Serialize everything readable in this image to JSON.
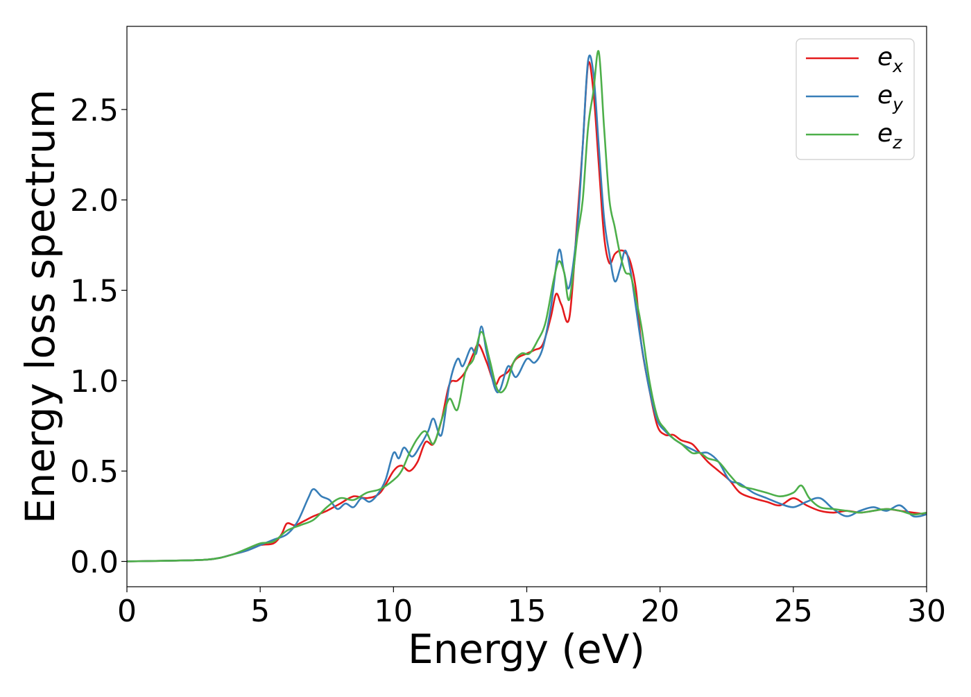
{
  "chart_data": {
    "type": "line",
    "title": "",
    "xlabel": "Energy (eV)",
    "ylabel": "Energy loss spectrum",
    "xlim": [
      0,
      30
    ],
    "ylim": [
      -0.14,
      2.96
    ],
    "xticks": [
      0,
      5,
      10,
      15,
      20,
      25,
      30
    ],
    "xtick_labels": [
      "0",
      "5",
      "10",
      "15",
      "20",
      "25",
      "30"
    ],
    "yticks": [
      0.0,
      0.5,
      1.0,
      1.5,
      2.0,
      2.5
    ],
    "ytick_labels": [
      "0.0",
      "0.5",
      "1.0",
      "1.5",
      "2.0",
      "2.5"
    ],
    "grid": false,
    "legend_position": "top-right",
    "series": [
      {
        "name": "e_x",
        "label_base": "e",
        "label_sub": "x",
        "color": "#e41a1c",
        "x": [
          0,
          2,
          3,
          3.5,
          4,
          4.5,
          5,
          5.5,
          5.8,
          6.0,
          6.3,
          6.6,
          7.0,
          7.5,
          8.0,
          8.5,
          9.0,
          9.5,
          10.0,
          10.3,
          10.6,
          10.9,
          11.2,
          11.5,
          11.8,
          12.1,
          12.4,
          12.7,
          13.0,
          13.2,
          13.5,
          13.8,
          14.0,
          14.3,
          14.6,
          15.0,
          15.3,
          15.6,
          15.9,
          16.1,
          16.3,
          16.6,
          16.9,
          17.1,
          17.3,
          17.5,
          17.7,
          17.9,
          18.1,
          18.3,
          18.5,
          18.7,
          18.9,
          19.1,
          19.3,
          19.6,
          19.9,
          20.2,
          20.5,
          20.8,
          21.2,
          21.5,
          21.8,
          22.2,
          22.6,
          23.0,
          23.5,
          24.0,
          24.5,
          25.0,
          25.5,
          26.0,
          26.5,
          27.0,
          27.5,
          28.0,
          28.5,
          29.0,
          29.5,
          30.0
        ],
        "values": [
          0.0,
          0.005,
          0.01,
          0.02,
          0.04,
          0.06,
          0.09,
          0.1,
          0.15,
          0.21,
          0.2,
          0.22,
          0.25,
          0.28,
          0.32,
          0.36,
          0.35,
          0.38,
          0.5,
          0.53,
          0.5,
          0.55,
          0.66,
          0.65,
          0.78,
          0.98,
          1.0,
          1.05,
          1.15,
          1.2,
          1.1,
          0.98,
          1.02,
          1.05,
          1.12,
          1.15,
          1.17,
          1.2,
          1.35,
          1.48,
          1.42,
          1.35,
          1.9,
          2.3,
          2.75,
          2.6,
          2.2,
          1.8,
          1.65,
          1.7,
          1.72,
          1.71,
          1.65,
          1.5,
          1.2,
          0.95,
          0.75,
          0.7,
          0.7,
          0.67,
          0.65,
          0.6,
          0.55,
          0.5,
          0.45,
          0.38,
          0.35,
          0.33,
          0.31,
          0.35,
          0.31,
          0.28,
          0.27,
          0.28,
          0.27,
          0.28,
          0.29,
          0.28,
          0.27,
          0.26
        ]
      },
      {
        "name": "e_y",
        "label_base": "e",
        "label_sub": "y",
        "color": "#377eb8",
        "x": [
          0,
          2,
          3,
          3.5,
          4,
          4.5,
          5,
          5.5,
          6.0,
          6.4,
          6.8,
          7.0,
          7.3,
          7.6,
          7.9,
          8.2,
          8.5,
          8.8,
          9.1,
          9.4,
          9.7,
          10.0,
          10.2,
          10.4,
          10.7,
          11.0,
          11.3,
          11.5,
          11.8,
          12.1,
          12.4,
          12.6,
          12.9,
          13.1,
          13.3,
          13.5,
          13.8,
          14.0,
          14.3,
          14.6,
          15.0,
          15.3,
          15.6,
          15.9,
          16.2,
          16.4,
          16.6,
          16.9,
          17.1,
          17.3,
          17.5,
          17.7,
          17.9,
          18.1,
          18.3,
          18.5,
          18.7,
          18.9,
          19.1,
          19.3,
          19.6,
          19.9,
          20.2,
          20.5,
          20.8,
          21.2,
          21.5,
          21.8,
          22.2,
          22.6,
          23.0,
          23.5,
          24.0,
          24.5,
          25.0,
          25.5,
          26.0,
          26.5,
          27.0,
          27.5,
          28.0,
          28.5,
          29.0,
          29.5,
          30.0
        ],
        "values": [
          0.0,
          0.005,
          0.01,
          0.02,
          0.04,
          0.06,
          0.09,
          0.12,
          0.15,
          0.22,
          0.35,
          0.4,
          0.36,
          0.34,
          0.29,
          0.32,
          0.3,
          0.35,
          0.33,
          0.37,
          0.45,
          0.6,
          0.57,
          0.63,
          0.58,
          0.64,
          0.72,
          0.79,
          0.7,
          0.98,
          1.12,
          1.08,
          1.18,
          1.15,
          1.3,
          1.15,
          0.96,
          0.95,
          1.08,
          1.02,
          1.12,
          1.1,
          1.18,
          1.4,
          1.72,
          1.6,
          1.52,
          1.85,
          2.3,
          2.77,
          2.7,
          2.3,
          1.9,
          1.7,
          1.55,
          1.62,
          1.72,
          1.6,
          1.4,
          1.2,
          0.95,
          0.78,
          0.72,
          0.68,
          0.65,
          0.62,
          0.6,
          0.6,
          0.55,
          0.45,
          0.43,
          0.38,
          0.35,
          0.32,
          0.3,
          0.33,
          0.35,
          0.29,
          0.25,
          0.28,
          0.3,
          0.28,
          0.31,
          0.25,
          0.26
        ]
      },
      {
        "name": "e_z",
        "label_base": "e",
        "label_sub": "z",
        "color": "#4daf4a",
        "x": [
          0,
          2,
          3,
          3.5,
          4,
          4.5,
          5,
          5.5,
          6.0,
          6.5,
          7.0,
          7.5,
          8.0,
          8.5,
          9.0,
          9.5,
          10.0,
          10.3,
          10.6,
          10.9,
          11.2,
          11.5,
          11.8,
          12.1,
          12.4,
          12.7,
          13.0,
          13.3,
          13.6,
          13.9,
          14.2,
          14.5,
          14.8,
          15.1,
          15.4,
          15.7,
          16.0,
          16.2,
          16.4,
          16.6,
          16.9,
          17.1,
          17.3,
          17.5,
          17.7,
          17.9,
          18.1,
          18.3,
          18.5,
          18.7,
          18.9,
          19.1,
          19.3,
          19.6,
          19.9,
          20.2,
          20.5,
          20.8,
          21.2,
          21.5,
          21.8,
          22.2,
          22.6,
          23.0,
          23.5,
          24.0,
          24.5,
          25.0,
          25.3,
          25.6,
          26.0,
          26.5,
          27.0,
          27.5,
          28.0,
          28.5,
          29.0,
          29.5,
          30.0
        ],
        "values": [
          0.0,
          0.005,
          0.01,
          0.02,
          0.04,
          0.07,
          0.1,
          0.11,
          0.17,
          0.2,
          0.23,
          0.3,
          0.35,
          0.34,
          0.38,
          0.4,
          0.45,
          0.5,
          0.6,
          0.68,
          0.72,
          0.65,
          0.78,
          0.9,
          0.84,
          1.05,
          1.12,
          1.27,
          1.12,
          0.95,
          0.96,
          1.1,
          1.15,
          1.15,
          1.22,
          1.32,
          1.55,
          1.66,
          1.6,
          1.45,
          1.8,
          2.0,
          2.4,
          2.6,
          2.82,
          2.4,
          2.0,
          1.85,
          1.7,
          1.6,
          1.58,
          1.45,
          1.3,
          1.0,
          0.8,
          0.73,
          0.68,
          0.65,
          0.6,
          0.6,
          0.57,
          0.55,
          0.48,
          0.42,
          0.4,
          0.38,
          0.36,
          0.38,
          0.42,
          0.35,
          0.3,
          0.29,
          0.28,
          0.27,
          0.28,
          0.29,
          0.28,
          0.26,
          0.27
        ]
      }
    ]
  }
}
